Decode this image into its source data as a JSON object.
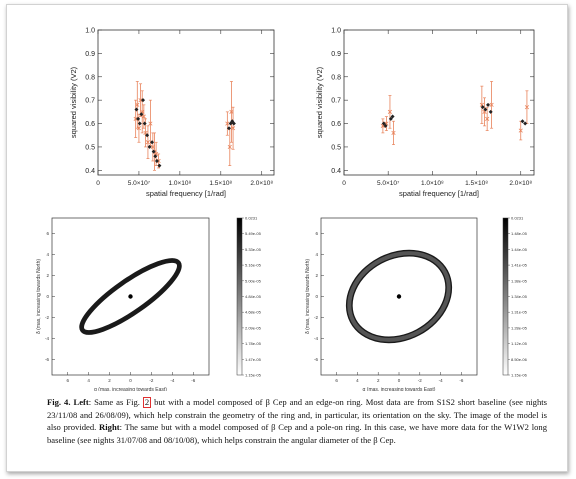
{
  "figure": {
    "top_charts": [
      {
        "chart_data": {
          "type": "scatter",
          "title": "",
          "xlabel": "spatial frequency [1/rad]",
          "ylabel": "squared visibility (V2)",
          "xlim": [
            0,
            22000000
          ],
          "ylim": [
            0.38,
            1.0
          ],
          "x_tick_labels": [
            "0",
            "5.0×10⁷",
            "1.0×10⁸",
            "1.5×10⁸",
            "2.0×10⁸"
          ],
          "x_ticks": [
            0,
            50000000,
            100000000,
            150000000,
            200000000
          ],
          "y_tick_labels": [
            "0.4",
            "0.5",
            "0.6",
            "0.7",
            "0.8",
            "0.9",
            "1.0"
          ],
          "y_ticks": [
            0.4,
            0.5,
            0.6,
            0.7,
            0.8,
            0.9,
            1.0
          ],
          "series": [
            {
              "kind": "model",
              "x": [
                47000000,
                49000000,
                51000000,
                53000000,
                55000000,
                57000000,
                60000000,
                63000000,
                66000000,
                68000000,
                70000000,
                72000000,
                75000000,
                160000000,
                162000000,
                164000000,
                166000000
              ],
              "y": [
                0.66,
                0.62,
                0.6,
                0.64,
                0.7,
                0.6,
                0.55,
                0.5,
                0.52,
                0.48,
                0.46,
                0.44,
                0.42,
                0.58,
                0.6,
                0.61,
                0.6
              ]
            },
            {
              "kind": "observed",
              "x": [
                46000000,
                48000000,
                50000000,
                52000000,
                54000000,
                56000000,
                58000000,
                61000000,
                64000000,
                67000000,
                69000000,
                71000000,
                74000000,
                158000000,
                161000000,
                163000000,
                165000000
              ],
              "y": [
                0.62,
                0.68,
                0.58,
                0.7,
                0.65,
                0.63,
                0.56,
                0.52,
                0.6,
                0.5,
                0.48,
                0.47,
                0.44,
                0.6,
                0.5,
                0.65,
                0.58
              ],
              "err": [
                0.08,
                0.1,
                0.06,
                0.07,
                0.09,
                0.05,
                0.06,
                0.07,
                0.1,
                0.06,
                0.08,
                0.05,
                0.03,
                0.05,
                0.08,
                0.13,
                0.09
              ]
            }
          ]
        }
      },
      {
        "chart_data": {
          "type": "scatter",
          "title": "",
          "xlabel": "spatial frequency [1/rad]",
          "ylabel": "squared visibility (V2)",
          "xlim": [
            0,
            22000000
          ],
          "ylim": [
            0.38,
            1.0
          ],
          "x_tick_labels": [
            "0",
            "5.0×10⁷",
            "1.0×10⁸",
            "1.5×10⁸",
            "2.0×10⁸"
          ],
          "x_ticks": [
            0,
            50000000,
            100000000,
            150000000,
            200000000
          ],
          "y_tick_labels": [
            "0.4",
            "0.5",
            "0.6",
            "0.7",
            "0.8",
            "0.9",
            "1.0"
          ],
          "y_ticks": [
            0.4,
            0.5,
            0.6,
            0.7,
            0.8,
            0.9,
            1.0
          ],
          "series": [
            {
              "kind": "model",
              "x": [
                45000000,
                47000000,
                53000000,
                55000000,
                157000000,
                160000000,
                163000000,
                166000000,
                202000000,
                205000000
              ],
              "y": [
                0.6,
                0.59,
                0.62,
                0.63,
                0.67,
                0.66,
                0.68,
                0.65,
                0.61,
                0.6
              ]
            },
            {
              "kind": "observed",
              "x": [
                44000000,
                48000000,
                52000000,
                56000000,
                156000000,
                159000000,
                162000000,
                167000000,
                200000000,
                207000000
              ],
              "y": [
                0.59,
                0.6,
                0.65,
                0.56,
                0.68,
                0.65,
                0.62,
                0.68,
                0.57,
                0.67
              ],
              "err": [
                0.03,
                0.03,
                0.07,
                0.05,
                0.08,
                0.06,
                0.05,
                0.1,
                0.04,
                0.07
              ]
            }
          ]
        }
      }
    ],
    "bottom_images": [
      {
        "xlabel": "α (mas, increasing towards East)",
        "ylabel": "δ (mas, increasing towards North)",
        "x_tick_labels": [
          "6",
          "4",
          "2",
          "0",
          "-2",
          "-4",
          "-6"
        ],
        "y_tick_labels": [
          "-6",
          "-4",
          "-2",
          "0",
          "2",
          "4",
          "6"
        ],
        "ring": {
          "rx": 5.6,
          "ry": 1.5,
          "angle_deg": -35,
          "stroke": 0.45
        },
        "colorbar_labels": [
          "0.0231",
          "5.49e-05",
          "5.33e-05",
          "5.16e-05",
          "5.00e-05",
          "4.84e-05",
          "4.68e-05",
          "2.09e-05",
          "1.78e-05",
          "1.47e-05",
          "1.15e-05"
        ]
      },
      {
        "xlabel": "α (mas, increasing towards East)",
        "ylabel": "δ (mas, increasing towards North)",
        "x_tick_labels": [
          "6",
          "4",
          "2",
          "0",
          "-2",
          "-4",
          "-6"
        ],
        "y_tick_labels": [
          "-6",
          "-4",
          "-2",
          "0",
          "2",
          "4",
          "6"
        ],
        "ring": {
          "rx": 5.0,
          "ry": 3.9,
          "angle_deg": -28,
          "stroke": 0.65
        },
        "colorbar_labels": [
          "0.0231",
          "1.48e-05",
          "1.44e-05",
          "1.41e-05",
          "1.38e-05",
          "1.34e-05",
          "1.31e-05",
          "1.28e-05",
          "1.12e-05",
          "8.50e-06",
          "1.15e-06"
        ]
      }
    ]
  },
  "caption": {
    "label": "Fig. 4.",
    "left_label": "Left",
    "part1": ": Same as Fig. ",
    "fig_ref": "2",
    "part2": " but with a model composed of β Cep and an edge-on ring. Most data are from S1S2 short baseline (see nights 23/11/08 and 26/08/09), which help constrain the geometry of the ring and, in particular, its orientation on the sky. The image of the model is also provided. ",
    "right_label": "Right",
    "part3": ": The same but with a model composed of β Cep and a pole-on ring. In this case, we have more data for the W1W2 long baseline (see nights 31/07/08 and 08/10/08), which helps constrain the angular diameter of the β Cep."
  }
}
